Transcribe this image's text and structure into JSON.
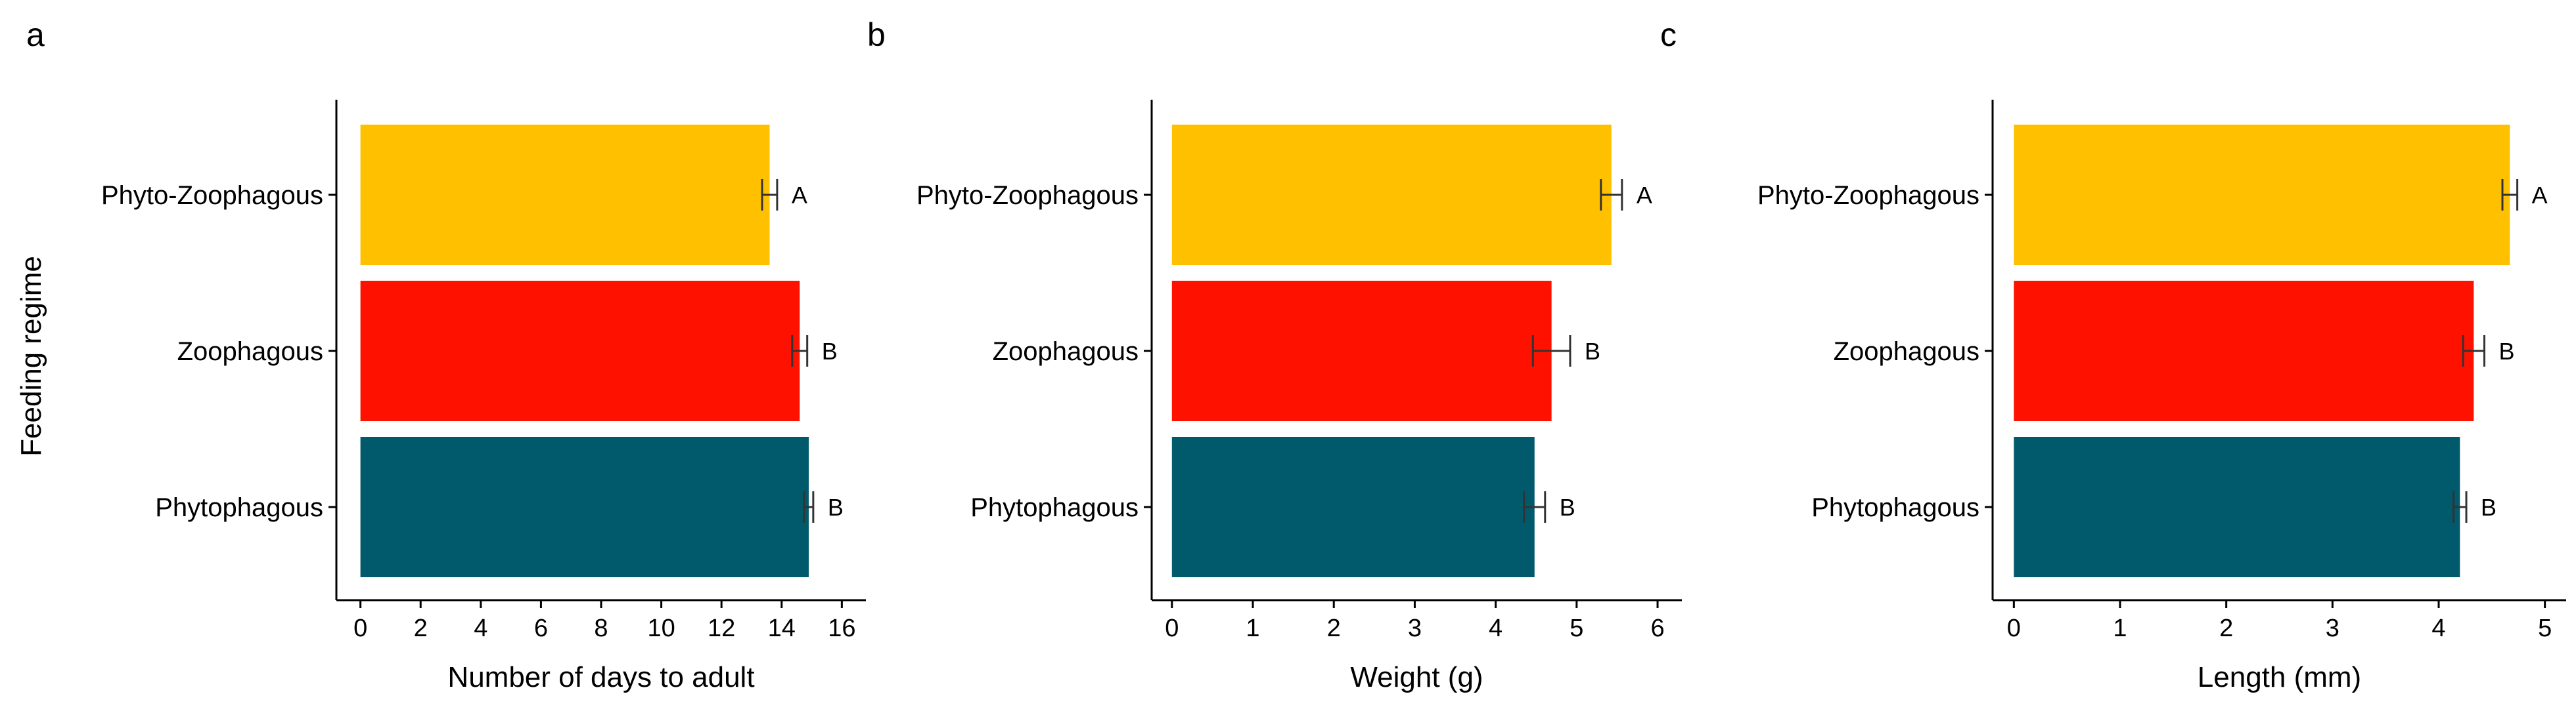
{
  "y_axis_title": "Feeding regime",
  "colors": {
    "Phyto-Zoophagous": "#FFC000",
    "Zoophagous": "#FF1100",
    "Phytophagous": "#005A6C"
  },
  "chart_data": [
    {
      "type": "bar",
      "orientation": "horizontal",
      "panel_label": "a",
      "categories": [
        "Phyto-Zoophagous",
        "Zoophagous",
        "Phytophagous"
      ],
      "values": [
        13.6,
        14.6,
        14.9
      ],
      "errors": [
        0.25,
        0.25,
        0.15
      ],
      "significance": [
        "A",
        "B",
        "B"
      ],
      "xlabel": "Number of days to adult",
      "ylabel": "Feeding regime",
      "xlim": [
        -0.8,
        16.8
      ],
      "xticks": [
        0,
        2,
        4,
        6,
        8,
        10,
        12,
        14,
        16
      ],
      "grid": false
    },
    {
      "type": "bar",
      "orientation": "horizontal",
      "panel_label": "b",
      "categories": [
        "Phyto-Zoophagous",
        "Zoophagous",
        "Phytophagous"
      ],
      "values": [
        5.43,
        4.69,
        4.48
      ],
      "errors": [
        0.13,
        0.23,
        0.13
      ],
      "significance": [
        "A",
        "B",
        "B"
      ],
      "xlabel": "Weight (g)",
      "ylabel": "",
      "xlim": [
        -0.25,
        6.3
      ],
      "xticks": [
        0,
        1,
        2,
        3,
        4,
        5,
        6
      ],
      "grid": false
    },
    {
      "type": "bar",
      "orientation": "horizontal",
      "panel_label": "c",
      "categories": [
        "Phyto-Zoophagous",
        "Zoophagous",
        "Phytophagous"
      ],
      "values": [
        4.67,
        4.33,
        4.2
      ],
      "errors": [
        0.07,
        0.1,
        0.06
      ],
      "significance": [
        "A",
        "B",
        "B"
      ],
      "xlabel": "Length (mm)",
      "ylabel": "",
      "xlim": [
        -0.2,
        5.2
      ],
      "xticks": [
        0,
        1,
        2,
        3,
        4,
        5
      ],
      "grid": false
    }
  ]
}
